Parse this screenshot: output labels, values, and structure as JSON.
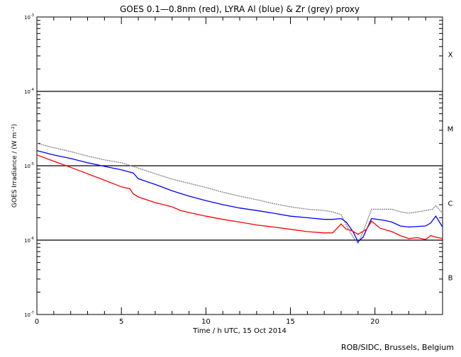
{
  "chart_data": {
    "type": "line",
    "title": "GOES 0.1—0.8nm (red), LYRA Al (blue) & Zr (grey) proxy",
    "xlabel": "Time / h UTC, 15 Oct 2014",
    "ylabel": "GOES Irradiance / (W m⁻²)",
    "xlim": [
      0,
      24
    ],
    "ylim": [
      1e-07,
      0.001
    ],
    "yscale": "log",
    "xticks": [
      "0",
      "5",
      "10",
      "15",
      "20"
    ],
    "yticks": [
      {
        "base": "10",
        "exp": "-3"
      },
      {
        "base": "10",
        "exp": "-4"
      },
      {
        "base": "10",
        "exp": "-5"
      },
      {
        "base": "10",
        "exp": "-6"
      },
      {
        "base": "10",
        "exp": "-7"
      }
    ],
    "class_labels": [
      "X",
      "M",
      "C",
      "B"
    ],
    "footer": "ROB/SIDC, Brussels, Belgium",
    "series": [
      {
        "name": "GOES 0.1-0.8nm",
        "color": "#ff0000",
        "x": [
          0,
          1,
          2,
          3,
          4,
          5,
          5.5,
          5.7,
          6,
          7,
          8,
          8.5,
          9,
          10,
          11,
          12,
          13,
          14,
          15,
          16,
          17,
          17.5,
          18,
          18.3,
          18.6,
          19,
          19.5,
          19.8,
          20.3,
          21,
          21.5,
          22,
          22.5,
          23,
          23.3,
          23.6,
          24
        ],
        "y": [
          1.4e-05,
          1.15e-05,
          9.5e-06,
          7.8e-06,
          6.4e-06,
          5.2e-06,
          4.9e-06,
          4.2e-06,
          3.8e-06,
          3.2e-06,
          2.8e-06,
          2.5e-06,
          2.35e-06,
          2.1e-06,
          1.9e-06,
          1.75e-06,
          1.6e-06,
          1.5e-06,
          1.4e-06,
          1.3e-06,
          1.25e-06,
          1.25e-06,
          1.65e-06,
          1.4e-06,
          1.35e-06,
          1.2e-06,
          1.4e-06,
          1.8e-06,
          1.45e-06,
          1.3e-06,
          1.15e-06,
          1.05e-06,
          1.08e-06,
          1.02e-06,
          1.15e-06,
          1.1e-06,
          1.05e-06
        ]
      },
      {
        "name": "LYRA Al proxy",
        "color": "#0000ff",
        "x": [
          0,
          1,
          2,
          3,
          4,
          5,
          5.7,
          6,
          7,
          8,
          9,
          10,
          11,
          12,
          13,
          14,
          15,
          16,
          17,
          17.5,
          18,
          18.3,
          18.7,
          19,
          19.3,
          19.8,
          20.5,
          21,
          21.5,
          22,
          23,
          23.3,
          23.6,
          24
        ],
        "y": [
          1.6e-05,
          1.4e-05,
          1.25e-05,
          1.1e-05,
          9.8e-06,
          8.8e-06,
          8e-06,
          6.7e-06,
          5.6e-06,
          4.6e-06,
          3.9e-06,
          3.4e-06,
          3e-06,
          2.7e-06,
          2.5e-06,
          2.3e-06,
          2.1e-06,
          2e-06,
          1.9e-06,
          1.9e-06,
          1.95e-06,
          1.75e-06,
          1.3e-06,
          9.5e-07,
          1.1e-06,
          1.95e-06,
          1.85e-06,
          1.75e-06,
          1.55e-06,
          1.5e-06,
          1.55e-06,
          1.7e-06,
          2.1e-06,
          1.5e-06
        ]
      },
      {
        "name": "LYRA Zr proxy",
        "color": "#808080",
        "x": [
          0,
          1,
          2,
          3,
          4,
          5,
          6,
          7,
          8,
          9,
          10,
          11,
          12,
          13,
          14,
          15,
          16,
          17,
          17.5,
          18,
          18.3,
          18.7,
          19,
          19.3,
          19.8,
          20.5,
          21,
          21.5,
          22,
          23,
          23.4,
          23.6,
          24
        ],
        "y": [
          2e-05,
          1.75e-05,
          1.55e-05,
          1.35e-05,
          1.2e-05,
          1.1e-05,
          9.3e-06,
          7.8e-06,
          6.6e-06,
          5.8e-06,
          5.1e-06,
          4.4e-06,
          3.9e-06,
          3.5e-06,
          3.1e-06,
          2.8e-06,
          2.6e-06,
          2.5e-06,
          2.4e-06,
          2.2e-06,
          1.6e-06,
          1.1e-06,
          9e-07,
          1.3e-06,
          2.6e-06,
          2.6e-06,
          2.6e-06,
          2.4e-06,
          2.3e-06,
          2.5e-06,
          2.6e-06,
          2.9e-06,
          2.3e-06
        ]
      }
    ]
  }
}
